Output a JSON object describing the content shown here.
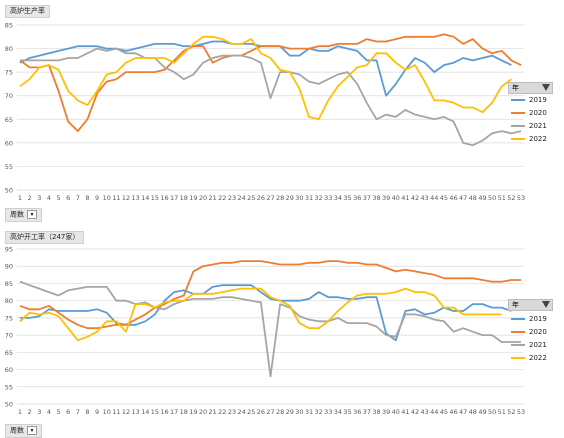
{
  "charts": [
    {
      "title_label": "高炉生产率",
      "footer_label": "周数",
      "legend_header": "年",
      "legend_funnel_icon": "filter-icon"
    },
    {
      "title_label": "高炉开工率（247家）",
      "footer_label": "周数",
      "legend_header": "年",
      "legend_funnel_icon": "filter-icon"
    }
  ],
  "colors": {
    "2019": "#5b9bd5",
    "2020": "#ed7d31",
    "2021": "#a5a5a5",
    "2022": "#ffc000"
  },
  "chart_data": [
    {
      "type": "line",
      "title": "高炉生产率",
      "xlabel": "周数",
      "ylabel": "",
      "x": [
        1,
        2,
        3,
        4,
        5,
        6,
        7,
        8,
        9,
        10,
        11,
        12,
        13,
        14,
        15,
        16,
        17,
        18,
        19,
        20,
        21,
        22,
        23,
        24,
        25,
        26,
        27,
        28,
        29,
        30,
        31,
        32,
        33,
        34,
        35,
        36,
        37,
        38,
        39,
        40,
        41,
        42,
        43,
        44,
        45,
        46,
        47,
        48,
        49,
        50,
        51,
        52,
        53
      ],
      "ylim": [
        50,
        85
      ],
      "yticks": [
        50,
        55,
        60,
        65,
        70,
        75,
        80,
        85
      ],
      "legend_title": "年",
      "legend_position": "right",
      "grid": true,
      "series": [
        {
          "name": "2019",
          "values": [
            77,
            78,
            78.5,
            79,
            79.5,
            80,
            80.5,
            80.5,
            80.5,
            80,
            80,
            79.5,
            80,
            80.5,
            81,
            81,
            81,
            80.5,
            80.5,
            81,
            81.5,
            81.5,
            81,
            81,
            81,
            80.5,
            80.5,
            80.5,
            78.5,
            78.5,
            80,
            79.5,
            79.5,
            80.5,
            80,
            79.5,
            77.5,
            77.5,
            70,
            72.5,
            75.5,
            78,
            77,
            75,
            76.5,
            77,
            78,
            77.5,
            78,
            78.5,
            77.5,
            76.5,
            null
          ]
        },
        {
          "name": "2020",
          "values": [
            77.5,
            76,
            76,
            76.5,
            71,
            64.5,
            62.5,
            65,
            70.5,
            73,
            73.5,
            75,
            75,
            75,
            75,
            75.5,
            77.5,
            79.5,
            80.5,
            80.5,
            77,
            78,
            78.5,
            78.5,
            79.5,
            80.5,
            80.5,
            80.5,
            80,
            80,
            80,
            80.5,
            80.5,
            81,
            81,
            81,
            82,
            81.5,
            81.5,
            82,
            82.5,
            82.5,
            82.5,
            82.5,
            83,
            82.5,
            81,
            82,
            80,
            79,
            79.5,
            77.5,
            76.5
          ]
        },
        {
          "name": "2021",
          "values": [
            77.5,
            77.5,
            77.5,
            77.5,
            77.5,
            78,
            78,
            79,
            80,
            79.5,
            80,
            79,
            79,
            78,
            78,
            76,
            75,
            73.5,
            74.5,
            77,
            78,
            78.5,
            78.5,
            78.5,
            78,
            77,
            69.5,
            75,
            75,
            74.5,
            73,
            72.5,
            73.5,
            74.5,
            75,
            72.5,
            68.5,
            65,
            66,
            65.5,
            67,
            66,
            65.5,
            65,
            65.5,
            64.5,
            60,
            59.5,
            60.5,
            62,
            62.5,
            62,
            62.5
          ]
        },
        {
          "name": "2022",
          "values": [
            72,
            73.5,
            76,
            76.5,
            75.5,
            71,
            69,
            68,
            71,
            74.5,
            75,
            77,
            78,
            78,
            78,
            78,
            77,
            79,
            81,
            82.5,
            82.5,
            82,
            81,
            81,
            82,
            79,
            78,
            75.5,
            75,
            71.5,
            65.5,
            65,
            69,
            72,
            74,
            76,
            76.5,
            79,
            79,
            77,
            75.5,
            76.5,
            73,
            69,
            69,
            68.5,
            67.5,
            67.5,
            66.5,
            68.5,
            72,
            73.5,
            null
          ]
        }
      ]
    },
    {
      "type": "line",
      "title": "高炉开工率（247家）",
      "xlabel": "周数",
      "ylabel": "",
      "x": [
        1,
        2,
        3,
        4,
        5,
        6,
        7,
        8,
        9,
        10,
        11,
        12,
        13,
        14,
        15,
        16,
        17,
        18,
        19,
        20,
        21,
        22,
        23,
        24,
        25,
        26,
        27,
        28,
        29,
        30,
        31,
        32,
        33,
        34,
        35,
        36,
        37,
        38,
        39,
        40,
        41,
        42,
        43,
        44,
        45,
        46,
        47,
        48,
        49,
        50,
        51,
        52,
        53
      ],
      "ylim": [
        50,
        95
      ],
      "yticks": [
        50,
        55,
        60,
        65,
        70,
        75,
        80,
        85,
        90,
        95
      ],
      "legend_title": "年",
      "legend_position": "right",
      "grid": true,
      "series": [
        {
          "name": "2019",
          "values": [
            75,
            75,
            75.5,
            77.5,
            77,
            77,
            77,
            77,
            77.5,
            76.5,
            73.5,
            73,
            73,
            74,
            76,
            80,
            82.5,
            83,
            82,
            82,
            84,
            84.5,
            84.5,
            84.5,
            84.5,
            82.5,
            80.5,
            80,
            80,
            80,
            80.5,
            82.5,
            81,
            81,
            80.5,
            80.5,
            81,
            81,
            70.5,
            68.5,
            77,
            77.5,
            76,
            76.5,
            78,
            77,
            77,
            79,
            79,
            78,
            78,
            77,
            null
          ]
        },
        {
          "name": "2020",
          "values": [
            78.5,
            77.5,
            77.5,
            78.5,
            76.5,
            74.5,
            73,
            72,
            72,
            72.5,
            73,
            73,
            74.5,
            76,
            78,
            79,
            80.5,
            81.5,
            88.5,
            90,
            90.5,
            91,
            91,
            91.5,
            91.5,
            91.5,
            91,
            90.5,
            90.5,
            90.5,
            91,
            91,
            91.5,
            91.5,
            91,
            91,
            90.5,
            90.5,
            89.5,
            88.5,
            89,
            88.5,
            88,
            87.5,
            86.5,
            86.5,
            86.5,
            86.5,
            86,
            85.5,
            85.5,
            86,
            86
          ]
        },
        {
          "name": "2021",
          "values": [
            85.5,
            84.5,
            83.5,
            82.5,
            81.5,
            83,
            83.5,
            84,
            84,
            84,
            80,
            80,
            79,
            79.5,
            78,
            77.5,
            79,
            80,
            80.5,
            80.5,
            80.5,
            81,
            81,
            80.5,
            80,
            79.5,
            58,
            79,
            78,
            75.5,
            74.5,
            74,
            74,
            75,
            73.5,
            73.5,
            73.5,
            72.5,
            70,
            69.5,
            76,
            76,
            75.5,
            74.5,
            74,
            71,
            72,
            71,
            70,
            70,
            68,
            68,
            68
          ]
        },
        {
          "name": "2022",
          "values": [
            74,
            76.5,
            76,
            76.5,
            75.5,
            72,
            68.5,
            69.5,
            71,
            74,
            74,
            71,
            79,
            79,
            78,
            79.5,
            80,
            80,
            82,
            82,
            82,
            82.5,
            83,
            83.5,
            83.5,
            83.5,
            81,
            80,
            78.5,
            73.5,
            72,
            72,
            74,
            77,
            79.5,
            81.5,
            82,
            82,
            82,
            82.5,
            83.5,
            82.5,
            82.5,
            81.5,
            78,
            78,
            76,
            76,
            76,
            76,
            76,
            null,
            null
          ]
        }
      ]
    }
  ]
}
